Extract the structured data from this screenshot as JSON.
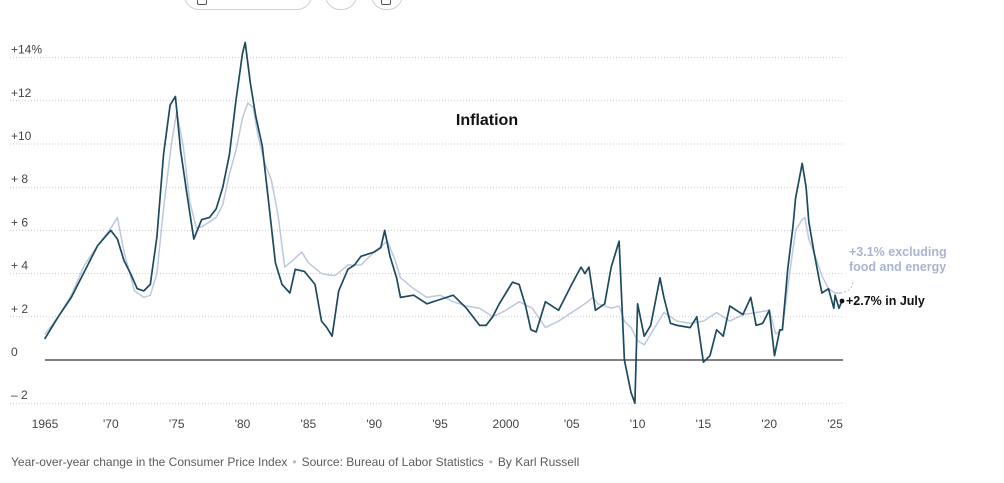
{
  "chart_data": {
    "type": "line",
    "title": "Inflation",
    "ylim": [
      -2.5,
      15
    ],
    "xlim": [
      1965,
      2025.6
    ],
    "y_ticks": [
      {
        "value": 14,
        "label": "+14%"
      },
      {
        "value": 12,
        "label": "+12"
      },
      {
        "value": 10,
        "label": "+10"
      },
      {
        "value": 8,
        "label": "+ 8"
      },
      {
        "value": 6,
        "label": "+ 6"
      },
      {
        "value": 4,
        "label": "+ 4"
      },
      {
        "value": 2,
        "label": "+ 2"
      },
      {
        "value": 0,
        "label": "0"
      },
      {
        "value": -2,
        "label": "– 2"
      }
    ],
    "x_ticks": [
      {
        "value": 1965,
        "label": "1965"
      },
      {
        "value": 1970,
        "label": "'70"
      },
      {
        "value": 1975,
        "label": "'75"
      },
      {
        "value": 1980,
        "label": "'80"
      },
      {
        "value": 1985,
        "label": "'85"
      },
      {
        "value": 1990,
        "label": "'90"
      },
      {
        "value": 1995,
        "label": "'95"
      },
      {
        "value": 2000,
        "label": "2000"
      },
      {
        "value": 2005,
        "label": "'05"
      },
      {
        "value": 2010,
        "label": "'10"
      },
      {
        "value": 2015,
        "label": "'15"
      },
      {
        "value": 2020,
        "label": "'20"
      },
      {
        "value": 2025,
        "label": "'25"
      }
    ],
    "grid": "horizontal dotted",
    "series": [
      {
        "key": "headline",
        "color": "#1d4a5e",
        "x": [
          1965.0,
          1966.0,
          1967.0,
          1968.0,
          1969.0,
          1970.0,
          1970.5,
          1971.0,
          1971.5,
          1972.0,
          1972.5,
          1973.0,
          1973.5,
          1974.0,
          1974.5,
          1974.9,
          1975.3,
          1975.8,
          1976.3,
          1976.9,
          1977.5,
          1978.0,
          1978.5,
          1979.0,
          1979.5,
          1980.0,
          1980.2,
          1980.6,
          1981.0,
          1981.5,
          1982.0,
          1982.5,
          1983.0,
          1983.6,
          1984.0,
          1984.7,
          1985.5,
          1986.0,
          1986.4,
          1986.8,
          1987.3,
          1988.0,
          1988.5,
          1989.0,
          1989.5,
          1990.0,
          1990.5,
          1990.8,
          1991.2,
          1991.7,
          1992.0,
          1993.0,
          1994.0,
          1995.0,
          1996.0,
          1997.0,
          1998.0,
          1998.5,
          1999.0,
          1999.5,
          2000.0,
          2000.5,
          2001.0,
          2001.5,
          2001.9,
          2002.3,
          2003.0,
          2004.0,
          2005.0,
          2005.7,
          2006.0,
          2006.3,
          2006.8,
          2007.5,
          2008.0,
          2008.6,
          2009.0,
          2009.5,
          2009.8,
          2010.0,
          2010.5,
          2011.0,
          2011.7,
          2012.0,
          2012.5,
          2013.0,
          2014.0,
          2014.5,
          2015.0,
          2015.5,
          2016.0,
          2016.5,
          2017.0,
          2018.0,
          2018.6,
          2019.0,
          2019.5,
          2020.0,
          2020.4,
          2020.8,
          2021.0,
          2021.4,
          2021.8,
          2022.0,
          2022.5,
          2022.8,
          2023.0,
          2023.4,
          2023.8,
          2024.0,
          2024.5,
          2024.9,
          2025.0,
          2025.3,
          2025.5
        ],
        "y": [
          1.0,
          2.0,
          2.9,
          4.1,
          5.3,
          6.0,
          5.6,
          4.6,
          4.0,
          3.3,
          3.2,
          3.5,
          5.7,
          9.5,
          11.8,
          12.2,
          9.7,
          7.6,
          5.6,
          6.5,
          6.6,
          7.0,
          8.0,
          9.5,
          12.0,
          14.2,
          14.7,
          12.8,
          11.3,
          9.9,
          7.2,
          4.5,
          3.5,
          3.1,
          4.2,
          4.1,
          3.5,
          1.8,
          1.5,
          1.1,
          3.2,
          4.2,
          4.4,
          4.8,
          4.9,
          5.0,
          5.2,
          6.0,
          4.8,
          3.8,
          2.9,
          3.0,
          2.6,
          2.8,
          3.0,
          2.4,
          1.6,
          1.6,
          2.0,
          2.6,
          3.1,
          3.6,
          3.5,
          2.5,
          1.4,
          1.3,
          2.7,
          2.3,
          3.5,
          4.3,
          4.0,
          4.3,
          2.3,
          2.6,
          4.3,
          5.5,
          0.0,
          -1.5,
          -2.0,
          2.6,
          1.1,
          1.6,
          3.8,
          2.9,
          1.7,
          1.6,
          1.5,
          2.0,
          -0.1,
          0.2,
          1.4,
          1.1,
          2.5,
          2.1,
          2.9,
          1.6,
          1.7,
          2.3,
          0.2,
          1.4,
          1.4,
          4.2,
          6.2,
          7.5,
          9.1,
          8.0,
          6.4,
          5.0,
          3.7,
          3.1,
          3.3,
          2.4,
          3.0,
          2.4,
          2.7
        ]
      },
      {
        "key": "core",
        "color": "#bcc8de",
        "x": [
          1965.0,
          1966.0,
          1967.0,
          1968.0,
          1969.0,
          1970.0,
          1970.5,
          1971.0,
          1971.8,
          1972.5,
          1973.0,
          1973.5,
          1974.0,
          1974.6,
          1975.0,
          1975.5,
          1976.0,
          1976.5,
          1977.0,
          1977.5,
          1978.0,
          1978.5,
          1979.0,
          1979.5,
          1980.0,
          1980.4,
          1980.8,
          1981.2,
          1981.7,
          1982.2,
          1982.7,
          1983.2,
          1983.8,
          1984.5,
          1985.0,
          1986.0,
          1987.0,
          1988.0,
          1989.0,
          1990.0,
          1990.6,
          1991.0,
          1991.6,
          1992.0,
          1993.0,
          1994.0,
          1995.0,
          1996.0,
          1997.0,
          1998.0,
          1999.0,
          2000.0,
          2001.0,
          2002.0,
          2003.0,
          2004.0,
          2005.0,
          2006.0,
          2006.6,
          2007.0,
          2008.0,
          2008.6,
          2009.0,
          2009.5,
          2010.0,
          2010.5,
          2011.0,
          2012.0,
          2013.0,
          2014.0,
          2015.0,
          2016.0,
          2017.0,
          2018.0,
          2019.0,
          2020.0,
          2020.5,
          2021.0,
          2021.5,
          2022.0,
          2022.5,
          2022.7,
          2023.0,
          2023.5,
          2024.0,
          2024.5,
          2025.0,
          2025.5
        ],
        "y": [
          1.2,
          2.0,
          3.0,
          4.4,
          5.3,
          6.1,
          6.6,
          5.0,
          3.2,
          2.9,
          3.0,
          4.0,
          7.0,
          10.0,
          11.5,
          9.9,
          7.3,
          6.1,
          6.2,
          6.4,
          6.6,
          7.2,
          8.6,
          9.7,
          11.2,
          11.9,
          11.7,
          10.3,
          9.1,
          8.3,
          6.7,
          4.3,
          4.6,
          5.0,
          4.5,
          4.0,
          3.9,
          4.4,
          4.4,
          5.0,
          5.3,
          5.5,
          4.6,
          3.8,
          3.3,
          2.9,
          3.0,
          2.7,
          2.5,
          2.4,
          2.0,
          2.3,
          2.7,
          2.4,
          1.5,
          1.8,
          2.2,
          2.6,
          2.9,
          2.6,
          2.4,
          2.5,
          1.8,
          1.5,
          0.9,
          0.7,
          1.2,
          2.2,
          1.8,
          1.7,
          1.8,
          2.2,
          1.8,
          2.1,
          2.2,
          2.3,
          1.2,
          1.4,
          3.8,
          6.0,
          6.5,
          6.6,
          5.6,
          4.8,
          3.9,
          3.3,
          3.1,
          3.1
        ]
      }
    ],
    "annotations": {
      "core_label_line1": "+3.1% excluding",
      "core_label_line2": "food and energy",
      "headline_label": "+2.7% in July"
    }
  },
  "colors": {
    "grid": "#c9c9c9",
    "zero_line": "#333333",
    "headline": "#1d4a5e",
    "core": "#bcc8de",
    "core_label": "#a9b5cf"
  },
  "footer": {
    "description": "Year-over-year change in the Consumer Price Index",
    "source": "Source: Bureau of Labor Statistics",
    "byline": "By Karl Russell",
    "separator": "•"
  }
}
